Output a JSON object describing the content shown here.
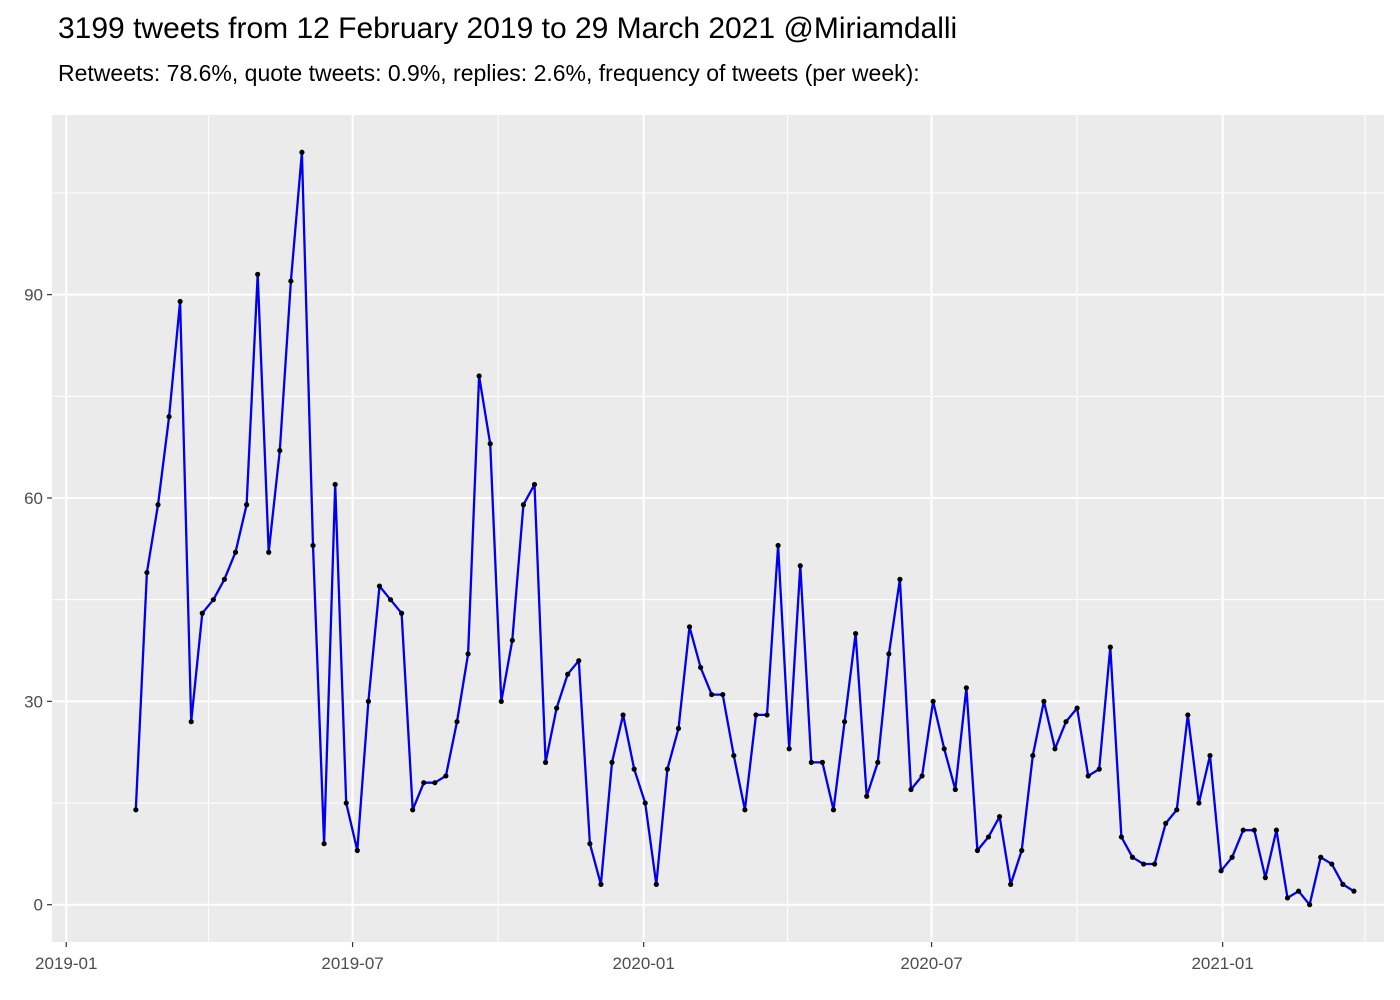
{
  "chart_data": {
    "type": "line",
    "title": "3199 tweets from 12 February 2019 to 29 March 2021 @Miriamdalli",
    "subtitle": "Retweets: 78.6%, quote tweets: 0.9%, replies: 2.6%, frequency of tweets (per week):",
    "xlabel": "",
    "ylabel": "",
    "x_axis": "date",
    "xlim": [
      "2018-12-23",
      "2021-04-13"
    ],
    "ylim": [
      -5.5,
      116.5
    ],
    "x_ticks": [
      {
        "date": "2019-01-01",
        "label": "2019-01"
      },
      {
        "date": "2019-07-01",
        "label": "2019-07"
      },
      {
        "date": "2020-01-01",
        "label": "2020-01"
      },
      {
        "date": "2020-07-01",
        "label": "2020-07"
      },
      {
        "date": "2021-01-01",
        "label": "2021-01"
      }
    ],
    "x_minor_dates": [
      "2019-04-01",
      "2019-10-01",
      "2020-04-01",
      "2020-10-01",
      "2021-04-01"
    ],
    "y_ticks": [
      0,
      30,
      60,
      90
    ],
    "y_minor": [
      15,
      45,
      75,
      105
    ],
    "grid": true,
    "colors": {
      "line": "#0000ee",
      "point": "#000000",
      "panel": "#ebebeb",
      "grid": "#ffffff"
    },
    "series": [
      {
        "x": [
          "2019-02-14",
          "2019-02-21",
          "2019-02-28",
          "2019-03-07",
          "2019-03-14",
          "2019-03-21",
          "2019-03-28",
          "2019-04-04",
          "2019-04-11",
          "2019-04-18",
          "2019-04-25",
          "2019-05-02",
          "2019-05-09",
          "2019-05-16",
          "2019-05-23",
          "2019-05-30",
          "2019-06-06",
          "2019-06-13",
          "2019-06-20",
          "2019-06-27",
          "2019-07-04",
          "2019-07-11",
          "2019-07-18",
          "2019-07-25",
          "2019-08-01",
          "2019-08-08",
          "2019-08-15",
          "2019-08-22",
          "2019-08-29",
          "2019-09-05",
          "2019-09-12",
          "2019-09-19",
          "2019-09-26",
          "2019-10-03",
          "2019-10-10",
          "2019-10-17",
          "2019-10-24",
          "2019-10-31",
          "2019-11-07",
          "2019-11-14",
          "2019-11-21",
          "2019-11-28",
          "2019-12-05",
          "2019-12-12",
          "2019-12-19",
          "2019-12-26",
          "2020-01-02",
          "2020-01-09",
          "2020-01-16",
          "2020-01-23",
          "2020-01-30",
          "2020-02-06",
          "2020-02-13",
          "2020-02-20",
          "2020-02-27",
          "2020-03-05",
          "2020-03-12",
          "2020-03-19",
          "2020-03-26",
          "2020-04-02",
          "2020-04-09",
          "2020-04-16",
          "2020-04-23",
          "2020-04-30",
          "2020-05-07",
          "2020-05-14",
          "2020-05-21",
          "2020-05-28",
          "2020-06-04",
          "2020-06-11",
          "2020-06-18",
          "2020-06-25",
          "2020-07-02",
          "2020-07-09",
          "2020-07-16",
          "2020-07-23",
          "2020-07-30",
          "2020-08-06",
          "2020-08-13",
          "2020-08-20",
          "2020-08-27",
          "2020-09-03",
          "2020-09-10",
          "2020-09-17",
          "2020-09-24",
          "2020-10-01",
          "2020-10-08",
          "2020-10-15",
          "2020-10-22",
          "2020-10-29",
          "2020-11-05",
          "2020-11-12",
          "2020-11-19",
          "2020-11-26",
          "2020-12-03",
          "2020-12-10",
          "2020-12-17",
          "2020-12-24",
          "2020-12-31",
          "2021-01-07",
          "2021-01-14",
          "2021-01-21",
          "2021-01-28",
          "2021-02-04",
          "2021-02-11",
          "2021-02-18",
          "2021-02-25",
          "2021-03-04",
          "2021-03-11",
          "2021-03-18",
          "2021-03-25"
        ],
        "y": [
          14,
          49,
          59,
          72,
          89,
          27,
          43,
          45,
          48,
          52,
          59,
          93,
          52,
          67,
          92,
          111,
          53,
          9,
          62,
          15,
          8,
          30,
          47,
          45,
          43,
          14,
          18,
          18,
          19,
          27,
          37,
          78,
          68,
          30,
          39,
          59,
          62,
          21,
          29,
          34,
          36,
          9,
          3,
          21,
          28,
          20,
          15,
          3,
          20,
          26,
          41,
          35,
          31,
          31,
          22,
          14,
          28,
          28,
          53,
          23,
          50,
          21,
          21,
          14,
          27,
          40,
          16,
          21,
          37,
          48,
          17,
          19,
          30,
          23,
          17,
          32,
          8,
          10,
          13,
          3,
          8,
          22,
          30,
          23,
          27,
          29,
          19,
          20,
          38,
          10,
          7,
          6,
          6,
          12,
          14,
          28,
          15,
          22,
          5,
          7,
          11,
          11,
          4,
          11,
          1,
          2,
          0,
          7,
          6,
          3,
          2
        ]
      }
    ]
  }
}
